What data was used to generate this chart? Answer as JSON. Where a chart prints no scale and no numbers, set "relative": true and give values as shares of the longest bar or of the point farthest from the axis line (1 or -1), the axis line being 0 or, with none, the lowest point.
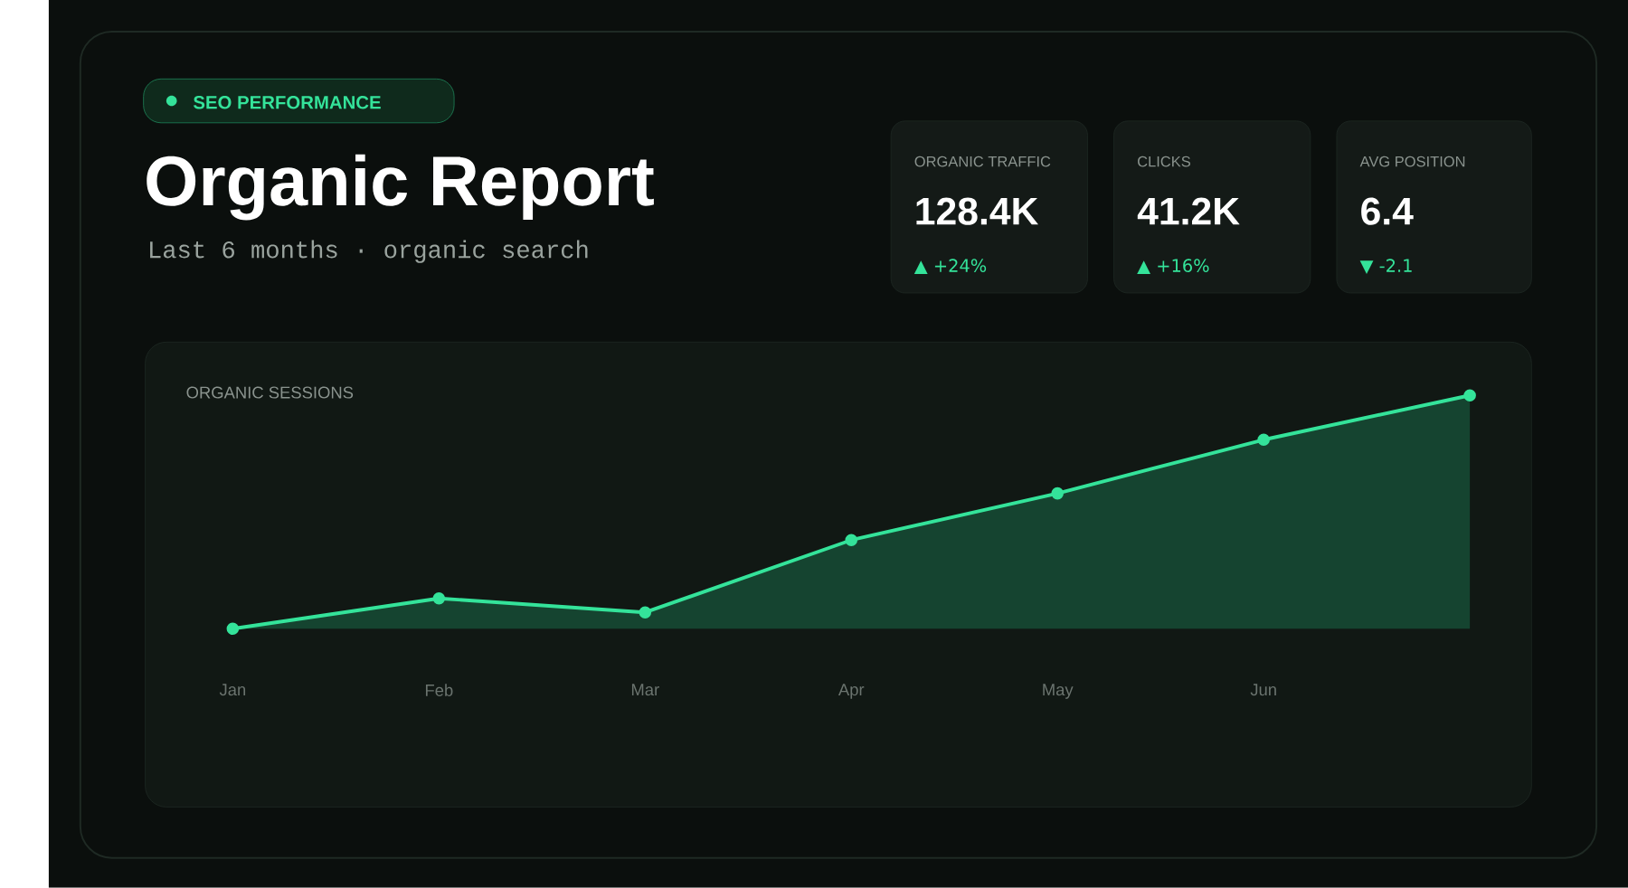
{
  "chart_data": {
    "type": "area",
    "title": "Organic Report",
    "subtitle": "Last 6 months · organic search",
    "categories": [
      "Jan",
      "Feb",
      "Mar",
      "Apr",
      "May",
      "Jun",
      null
    ],
    "series": [
      {
        "color": "#34e39a",
        "values": [
          0,
          0.13,
          0.07,
          0.38,
          0.58,
          0.81,
          1
        ]
      }
    ],
    "relative": true,
    "marker": "circle",
    "annotations": [
      "SEO PERFORMANCE",
      "ORGANIC SESSIONS",
      "ORGANIC TRAFFIC",
      "128.4K",
      "▲ +24%",
      "CLICKS",
      "41.2K",
      "▲ +16%",
      "AVG POSITION",
      "6.4",
      "▼ -2.1"
    ]
  }
}
